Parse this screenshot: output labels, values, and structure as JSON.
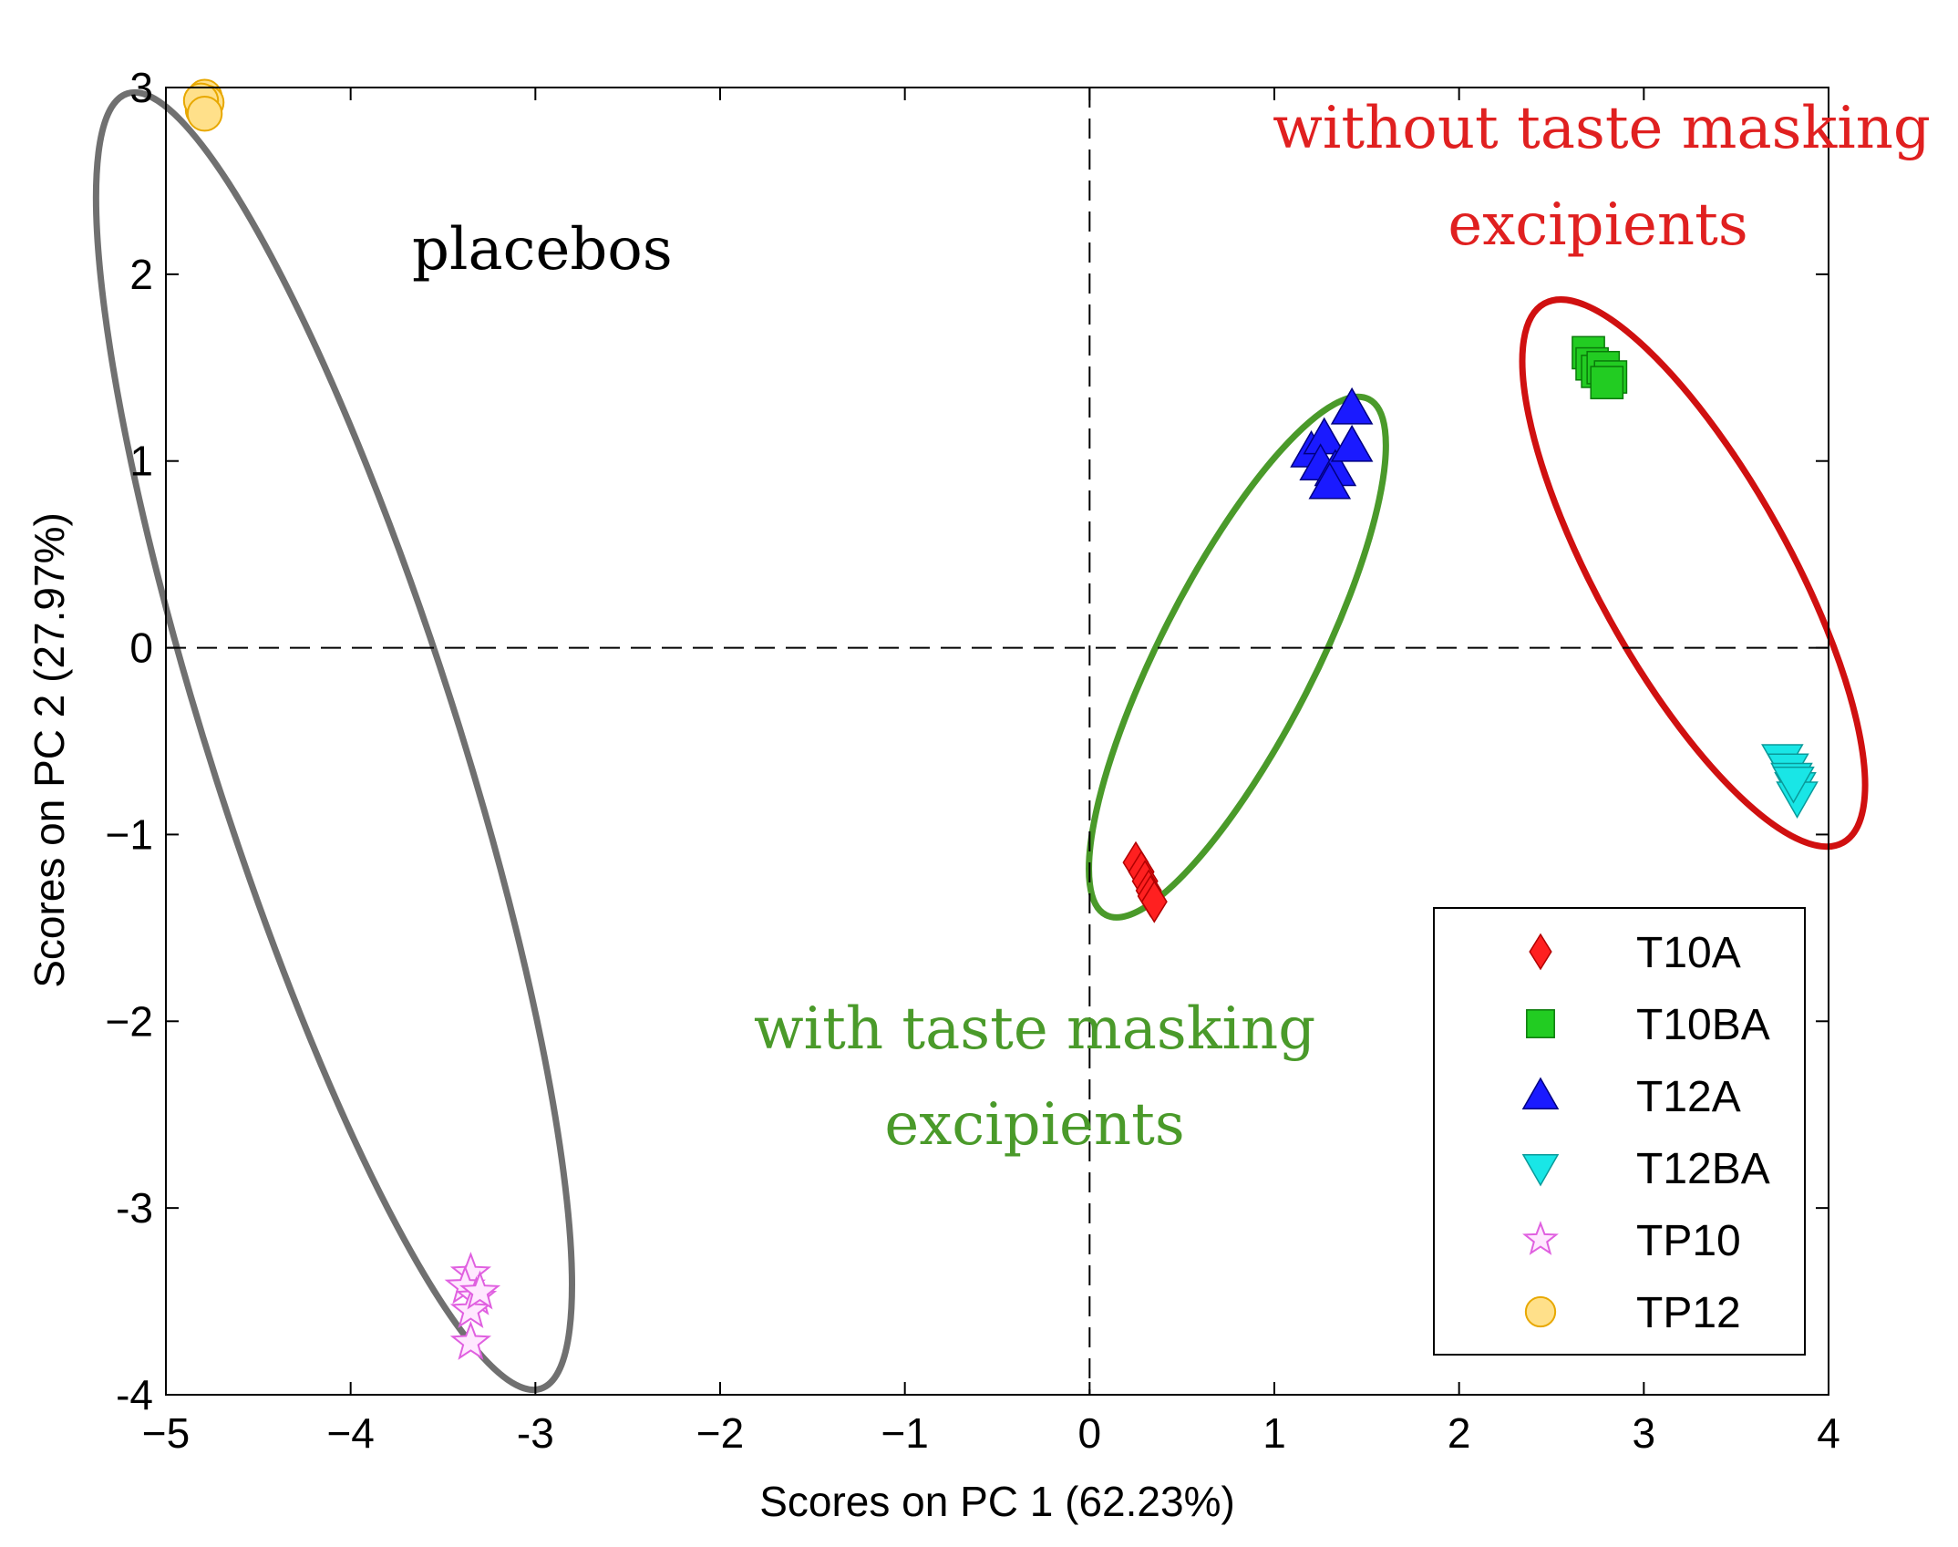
{
  "chart_data": {
    "type": "scatter",
    "title": "",
    "xlabel": "Scores on PC 1 (62.23%)",
    "ylabel": "Scores on PC 2 (27.97%)",
    "xlim": [
      -5,
      4
    ],
    "ylim": [
      -4,
      3
    ],
    "x_ticks": [
      -5,
      -4,
      -3,
      -2,
      -1,
      0,
      1,
      2,
      3,
      4
    ],
    "y_ticks": [
      -4,
      -3,
      -2,
      -1,
      0,
      1,
      2,
      3
    ],
    "x_tick_labels": [
      "−5",
      "−4",
      "-3",
      "−2",
      "−1",
      "0",
      "1",
      "2",
      "3",
      "4"
    ],
    "y_tick_labels": [
      "-4",
      "-3",
      "−2",
      "−1",
      "0",
      "1",
      "2",
      "3"
    ],
    "zero_lines": {
      "x": 0,
      "y": 0,
      "style": "dashed"
    },
    "legend_position": "bottom-right",
    "series": [
      {
        "name": "T10A",
        "marker": "diamond",
        "color": "#ff2020",
        "points": [
          [
            0.25,
            -1.15
          ],
          [
            0.28,
            -1.2
          ],
          [
            0.3,
            -1.25
          ],
          [
            0.32,
            -1.3
          ],
          [
            0.33,
            -1.33
          ],
          [
            0.35,
            -1.36
          ]
        ]
      },
      {
        "name": "T10BA",
        "marker": "square",
        "color": "#22cc22",
        "points": [
          [
            2.7,
            1.58
          ],
          [
            2.72,
            1.52
          ],
          [
            2.75,
            1.48
          ],
          [
            2.78,
            1.5
          ],
          [
            2.82,
            1.45
          ],
          [
            2.8,
            1.42
          ]
        ]
      },
      {
        "name": "T12A",
        "marker": "triangle-up",
        "color": "#1a1aff",
        "points": [
          [
            1.2,
            1.05
          ],
          [
            1.27,
            1.12
          ],
          [
            1.25,
            0.98
          ],
          [
            1.33,
            0.95
          ],
          [
            1.42,
            1.08
          ],
          [
            1.42,
            1.28
          ],
          [
            1.3,
            0.88
          ]
        ]
      },
      {
        "name": "T12BA",
        "marker": "triangle-down",
        "color": "#19e6e6",
        "points": [
          [
            3.75,
            -0.6
          ],
          [
            3.78,
            -0.65
          ],
          [
            3.8,
            -0.7
          ],
          [
            3.82,
            -0.75
          ],
          [
            3.83,
            -0.8
          ],
          [
            3.81,
            -0.72
          ]
        ]
      },
      {
        "name": "TP10",
        "marker": "star",
        "color": "#e060e0",
        "points": [
          [
            -3.35,
            -3.35
          ],
          [
            -3.38,
            -3.42
          ],
          [
            -3.32,
            -3.48
          ],
          [
            -3.35,
            -3.55
          ],
          [
            -3.3,
            -3.45
          ],
          [
            -3.35,
            -3.72
          ]
        ]
      },
      {
        "name": "TP12",
        "marker": "circle",
        "color": "#e8a800",
        "points": [
          [
            -4.8,
            2.9
          ],
          [
            -4.79,
            2.95
          ],
          [
            -4.8,
            2.88
          ],
          [
            -4.78,
            2.92
          ],
          [
            -4.81,
            2.93
          ],
          [
            -4.79,
            2.86
          ]
        ]
      }
    ],
    "annotations": [
      {
        "text": "placebos",
        "color": "#000000"
      },
      {
        "text": "without taste masking",
        "color": "#e02020"
      },
      {
        "text": "excipients",
        "color": "#e02020"
      },
      {
        "text": "with taste masking",
        "color": "#4a9a2a"
      },
      {
        "text": "excipients",
        "color": "#4a9a2a"
      }
    ],
    "ellipses": [
      {
        "group": "placebos",
        "color": "#707070",
        "center": [
          -4.09,
          -0.5
        ],
        "radius_x_pc1": 0.67,
        "radius_y_pc2": 3.64,
        "angle_deg": -17.7
      },
      {
        "group": "with taste masking",
        "color": "#4a9a2a",
        "center": [
          0.8,
          -0.05
        ],
        "radius_x_pc1": 0.42,
        "radius_y_pc2": 1.55,
        "angle_deg": 27
      },
      {
        "group": "without taste masking",
        "color": "#d01010",
        "center": [
          3.27,
          0.4
        ],
        "radius_x_pc1": 0.52,
        "radius_y_pc2": 1.65,
        "angle_deg": -29
      }
    ]
  }
}
